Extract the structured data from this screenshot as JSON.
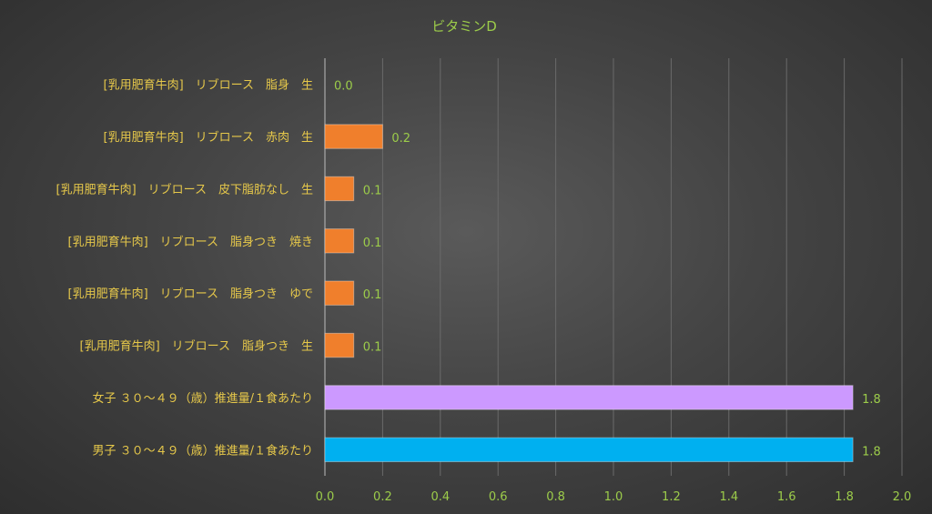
{
  "chart_data": {
    "type": "bar",
    "orientation": "horizontal",
    "title": "ビタミンD",
    "xlabel": "",
    "ylabel": "",
    "xlim": [
      0,
      2.0
    ],
    "ticks": [
      "0.0",
      "0.2",
      "0.4",
      "0.6",
      "0.8",
      "1.0",
      "1.2",
      "1.4",
      "1.6",
      "1.8",
      "2.0"
    ],
    "grid": true,
    "legend": "none",
    "categories": [
      "[乳用肥育牛肉]　リブロース　脂身　生",
      "[乳用肥育牛肉]　リブロース　赤肉　生",
      "[乳用肥育牛肉]　リブロース　皮下脂肪なし　生",
      "[乳用肥育牛肉]　リブロース　脂身つき　焼き",
      "[乳用肥育牛肉]　リブロース　脂身つき　ゆで",
      "[乳用肥育牛肉]　リブロース　脂身つき　生",
      "女子 ３０～４９（歳）推進量/１食あたり",
      "男子 ３０～４９（歳）推進量/１食あたり"
    ],
    "values": [
      0.0,
      0.2,
      0.1,
      0.1,
      0.1,
      0.1,
      1.83,
      1.83
    ],
    "value_labels": [
      "0.0",
      "0.2",
      "0.1",
      "0.1",
      "0.1",
      "0.1",
      "1.8",
      "1.8"
    ],
    "colors": [
      "#f07f2c",
      "#f07f2c",
      "#f07f2c",
      "#f07f2c",
      "#f07f2c",
      "#f07f2c",
      "#cc99ff",
      "#00b0f0"
    ]
  }
}
